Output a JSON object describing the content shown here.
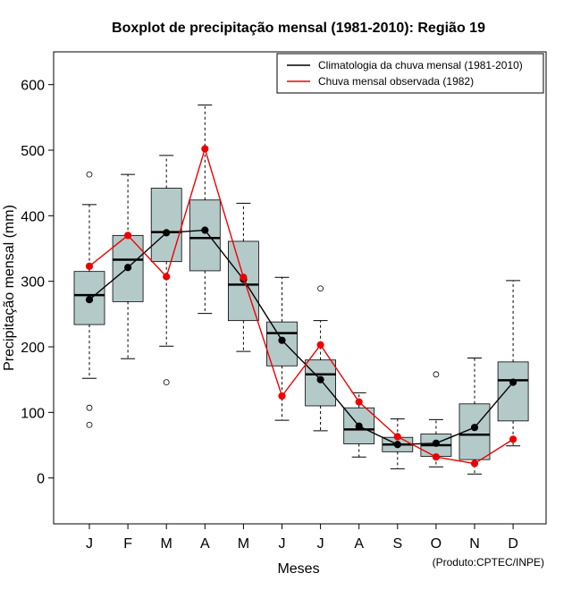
{
  "chart_data": {
    "type": "boxplot",
    "title": "Boxplot de precipitação mensal (1981-2010): Região 19",
    "xlabel": "Meses",
    "ylabel": "Precipitação mensal (mm)",
    "ylim": [
      -70,
      650
    ],
    "yticks": [
      0,
      100,
      200,
      300,
      400,
      500,
      600
    ],
    "categories": [
      "J",
      "F",
      "M",
      "A",
      "M",
      "J",
      "J",
      "A",
      "S",
      "O",
      "N",
      "D"
    ],
    "boxes": [
      {
        "whisker_low": 152,
        "q1": 234,
        "median": 279,
        "q3": 315,
        "whisker_high": 417,
        "outliers": [
          463,
          107,
          81
        ]
      },
      {
        "whisker_low": 182,
        "q1": 269,
        "median": 333,
        "q3": 370,
        "whisker_high": 463,
        "outliers": []
      },
      {
        "whisker_low": 201,
        "q1": 330,
        "median": 375,
        "q3": 442,
        "whisker_high": 492,
        "outliers": [
          146
        ]
      },
      {
        "whisker_low": 251,
        "q1": 316,
        "median": 366,
        "q3": 424,
        "whisker_high": 569,
        "outliers": []
      },
      {
        "whisker_low": 193,
        "q1": 240,
        "median": 295,
        "q3": 361,
        "whisker_high": 419,
        "outliers": []
      },
      {
        "whisker_low": 88,
        "q1": 171,
        "median": 221,
        "q3": 238,
        "whisker_high": 306,
        "outliers": []
      },
      {
        "whisker_low": 72,
        "q1": 110,
        "median": 158,
        "q3": 180,
        "whisker_high": 240,
        "outliers": [
          289
        ]
      },
      {
        "whisker_low": 32,
        "q1": 52,
        "median": 74,
        "q3": 107,
        "whisker_high": 130,
        "outliers": []
      },
      {
        "whisker_low": 14,
        "q1": 40,
        "median": 51,
        "q3": 62,
        "whisker_high": 90,
        "outliers": []
      },
      {
        "whisker_low": 17,
        "q1": 33,
        "median": 50,
        "q3": 67,
        "whisker_high": 89,
        "outliers": [
          158
        ]
      },
      {
        "whisker_low": 6,
        "q1": 28,
        "median": 66,
        "q3": 113,
        "whisker_high": 183,
        "outliers": []
      },
      {
        "whisker_low": 49,
        "q1": 87,
        "median": 149,
        "q3": 177,
        "whisker_high": 301,
        "outliers": []
      }
    ],
    "series": [
      {
        "name": "Climatologia da chuva mensal (1981-2010)",
        "color": "#000000",
        "values": [
          272,
          321,
          374,
          378,
          303,
          210,
          150,
          79,
          51,
          53,
          77,
          146
        ]
      },
      {
        "name": "Chuva mensal observada (1982)",
        "color": "#ee0000",
        "values": [
          323,
          370,
          307,
          502,
          306,
          125,
          203,
          116,
          63,
          32,
          22,
          59
        ]
      }
    ],
    "box_fill": "#b4cac9",
    "legend_position": "top-right",
    "credit": "(Produto:CPTEC/INPE)"
  }
}
